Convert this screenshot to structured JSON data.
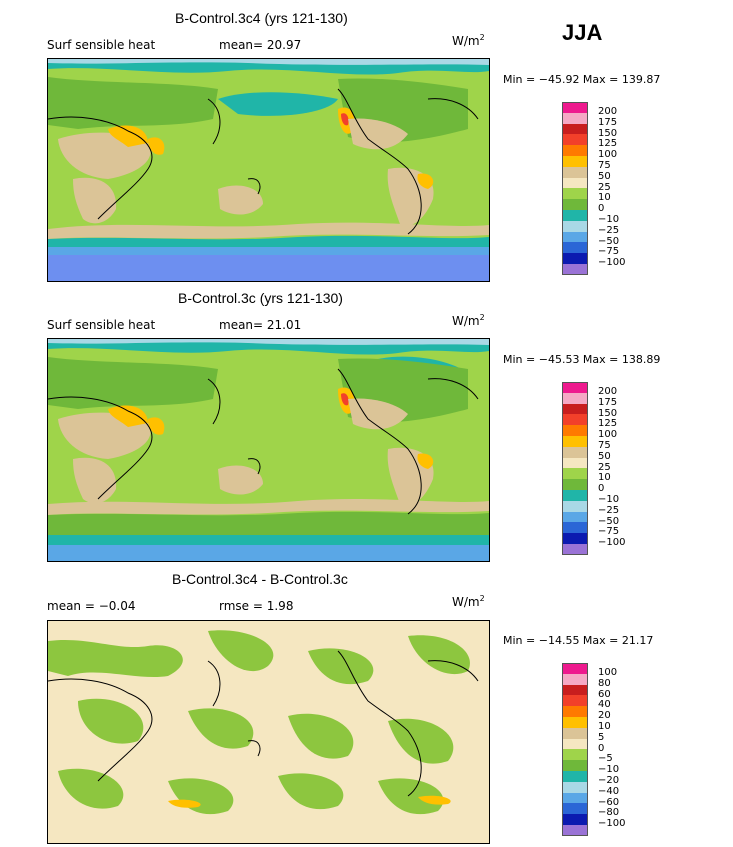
{
  "season": "JJA",
  "panels": [
    {
      "title": "B-Control.3c4 (yrs 121-130)",
      "variable": "Surf sensible heat",
      "stat_left": "mean=  20.97",
      "stat_right": "",
      "units": "W/m",
      "units_sup": "2",
      "minmax": "Min = −45.92 Max = 139.87",
      "levels": [
        "200",
        "175",
        "150",
        "125",
        "100",
        "75",
        "50",
        "25",
        "10",
        "0",
        "−10",
        "−25",
        "−50",
        "−75",
        "−100"
      ]
    },
    {
      "title": "B-Control.3c (yrs 121-130)",
      "variable": "Surf sensible heat",
      "stat_left": "mean=  21.01",
      "stat_right": "",
      "units": "W/m",
      "units_sup": "2",
      "minmax": "Min = −45.53 Max = 138.89",
      "levels": [
        "200",
        "175",
        "150",
        "125",
        "100",
        "75",
        "50",
        "25",
        "10",
        "0",
        "−10",
        "−25",
        "−50",
        "−75",
        "−100"
      ]
    },
    {
      "title": "B-Control.3c4 - B-Control.3c",
      "variable": "mean =  −0.04",
      "stat_left": "rmse =   1.98",
      "stat_right": "",
      "units": "W/m",
      "units_sup": "2",
      "minmax": "Min = −14.55 Max =  21.17",
      "levels": [
        "100",
        "80",
        "60",
        "40",
        "20",
        "10",
        "5",
        "0",
        "−5",
        "−10",
        "−20",
        "−40",
        "−60",
        "−80",
        "−100"
      ]
    }
  ],
  "colors": {
    "scale": [
      "#ee1a8e",
      "#f5a9c5",
      "#c81e1e",
      "#f2402a",
      "#ff7a00",
      "#ffc000",
      "#ffe44d",
      "#dbc497",
      "#f5e7c1",
      "#9fd44a",
      "#6fb83a",
      "#20b5a8",
      "#a9d8e6",
      "#5aa7e6",
      "#2b66d6",
      "#0b1ab0",
      "#9a73d6"
    ],
    "diff_bg": "#f5e7c1",
    "diff_green": "#8dc63f",
    "ocean_green": "#9fd44a",
    "land_dark": "#6fb83a",
    "teal": "#20b5a8",
    "blue_south": "#6d8ff0",
    "tan": "#dbc497",
    "yellow": "#ffd000"
  }
}
